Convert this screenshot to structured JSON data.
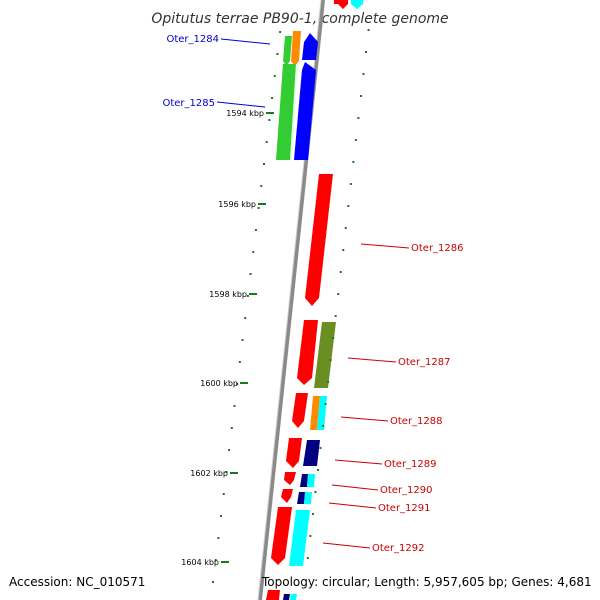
{
  "title": "Opitutus terrae PB90-1, complete genome",
  "footer": {
    "accession": "Accession: NC_010571",
    "info": "Topology: circular; Length: 5,957,605 bp; Genes: 4,681"
  },
  "colors": {
    "backbone": "#8a8a8a",
    "tick": "#1a7a1a",
    "left_label": "#0000cc",
    "right_label": "#cc0000",
    "red": "#ff0000",
    "blue": "#0000ff",
    "navy": "#000080",
    "cyan": "#00ffff",
    "green": "#33cc33",
    "orange": "#ff8c00",
    "olive": "#6b8e23"
  },
  "ruler": [
    {
      "label": "1594 kbp"
    },
    {
      "label": "1596 kbp"
    },
    {
      "label": "1598 kbp"
    },
    {
      "label": "1600 kbp"
    },
    {
      "label": "1602 kbp"
    },
    {
      "label": "1604 kbp"
    }
  ],
  "gene_labels": [
    {
      "text": "Oter_1284",
      "side": "left"
    },
    {
      "text": "Oter_1285",
      "side": "left"
    },
    {
      "text": "Oter_1286",
      "side": "right"
    },
    {
      "text": "Oter_1287",
      "side": "right"
    },
    {
      "text": "Oter_1288",
      "side": "right"
    },
    {
      "text": "Oter_1289",
      "side": "right"
    },
    {
      "text": "Oter_1290",
      "side": "right"
    },
    {
      "text": "Oter_1291",
      "side": "right"
    },
    {
      "text": "Oter_1292",
      "side": "right"
    }
  ]
}
